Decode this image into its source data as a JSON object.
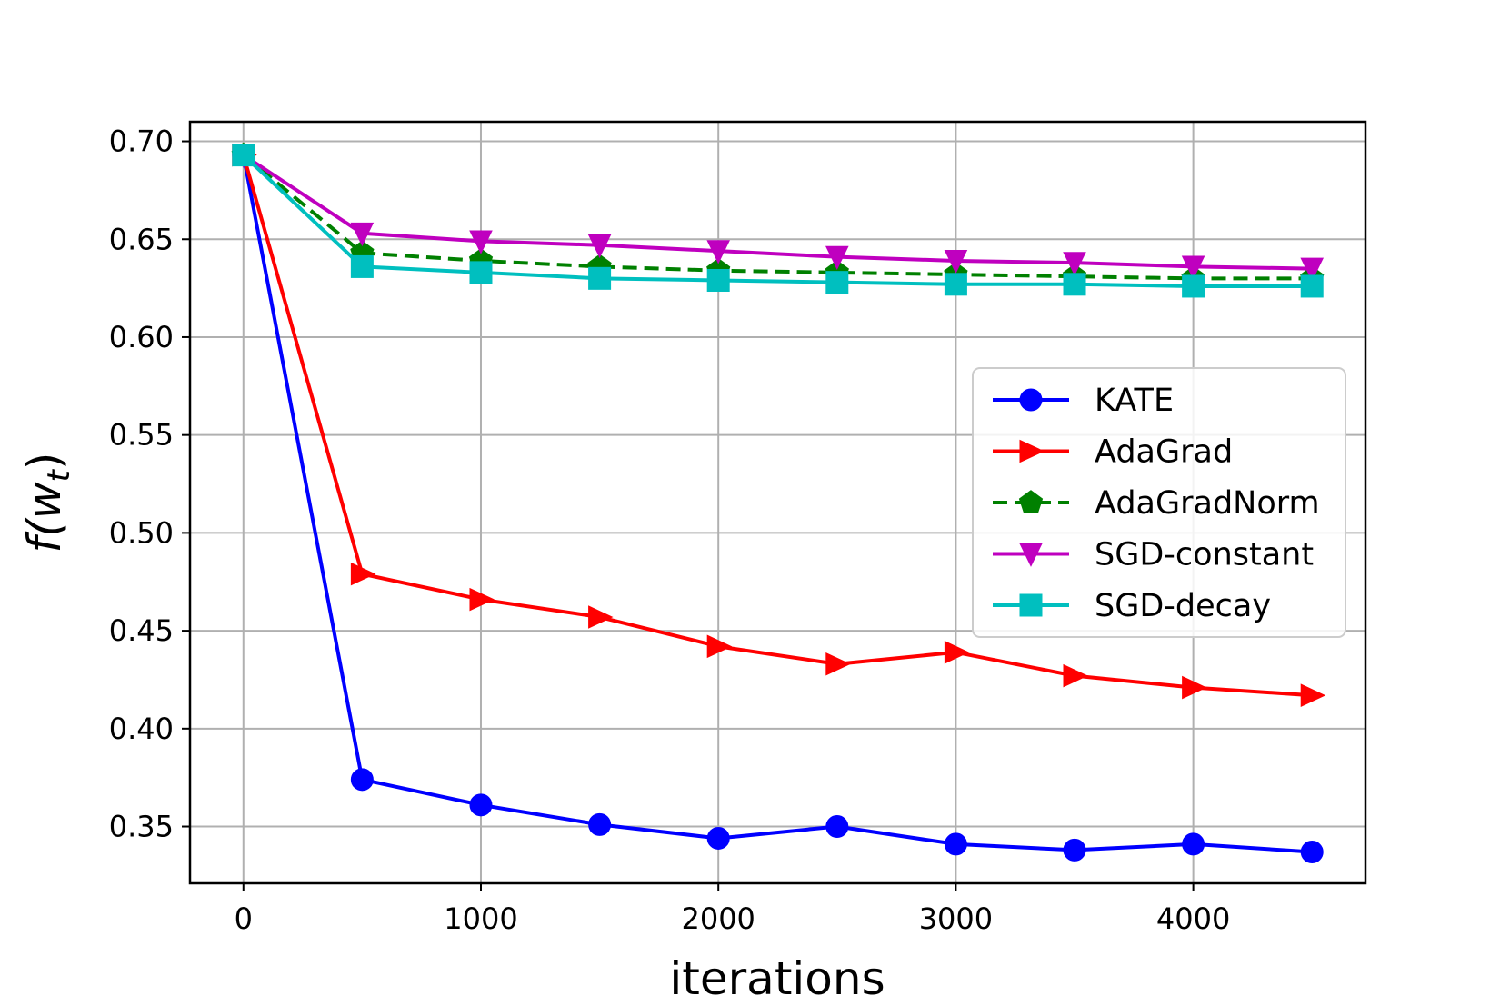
{
  "chart_data": {
    "type": "line",
    "title": "",
    "xlabel": "iterations",
    "ylabel_base": "f(w",
    "ylabel_sub": "t",
    "ylabel_close": ")",
    "xlim": [
      -225,
      4725
    ],
    "ylim": [
      0.321,
      0.71
    ],
    "x_ticks": [
      0,
      1000,
      2000,
      3000,
      4000
    ],
    "x_tick_labels": [
      "0",
      "1000",
      "2000",
      "3000",
      "4000"
    ],
    "y_ticks": [
      0.35,
      0.4,
      0.45,
      0.5,
      0.55,
      0.6,
      0.65,
      0.7
    ],
    "y_tick_labels": [
      "0.35",
      "0.40",
      "0.45",
      "0.50",
      "0.55",
      "0.60",
      "0.65",
      "0.70"
    ],
    "grid": true,
    "legend_position": "center-right",
    "x": [
      0,
      500,
      1000,
      1500,
      2000,
      2500,
      3000,
      3500,
      4000,
      4500
    ],
    "series": [
      {
        "name": "KATE",
        "color": "#0000ff",
        "marker": "circle",
        "dashed": false,
        "values": [
          0.693,
          0.374,
          0.361,
          0.351,
          0.344,
          0.35,
          0.341,
          0.338,
          0.341,
          0.337
        ]
      },
      {
        "name": "AdaGrad",
        "color": "#ff0000",
        "marker": "triangle-right",
        "dashed": false,
        "values": [
          0.693,
          0.479,
          0.466,
          0.457,
          0.442,
          0.433,
          0.439,
          0.427,
          0.421,
          0.417
        ]
      },
      {
        "name": "AdaGradNorm",
        "color": "#008000",
        "marker": "pentagon",
        "dashed": true,
        "values": [
          0.693,
          0.643,
          0.639,
          0.636,
          0.634,
          0.633,
          0.632,
          0.631,
          0.63,
          0.63
        ]
      },
      {
        "name": "SGD-constant",
        "color": "#bf00bf",
        "marker": "triangle-down",
        "dashed": false,
        "values": [
          0.693,
          0.653,
          0.649,
          0.647,
          0.644,
          0.641,
          0.639,
          0.638,
          0.636,
          0.635
        ]
      },
      {
        "name": "SGD-decay",
        "color": "#00bfbf",
        "marker": "square",
        "dashed": false,
        "values": [
          0.693,
          0.636,
          0.633,
          0.63,
          0.629,
          0.628,
          0.627,
          0.627,
          0.626,
          0.626
        ]
      }
    ]
  }
}
